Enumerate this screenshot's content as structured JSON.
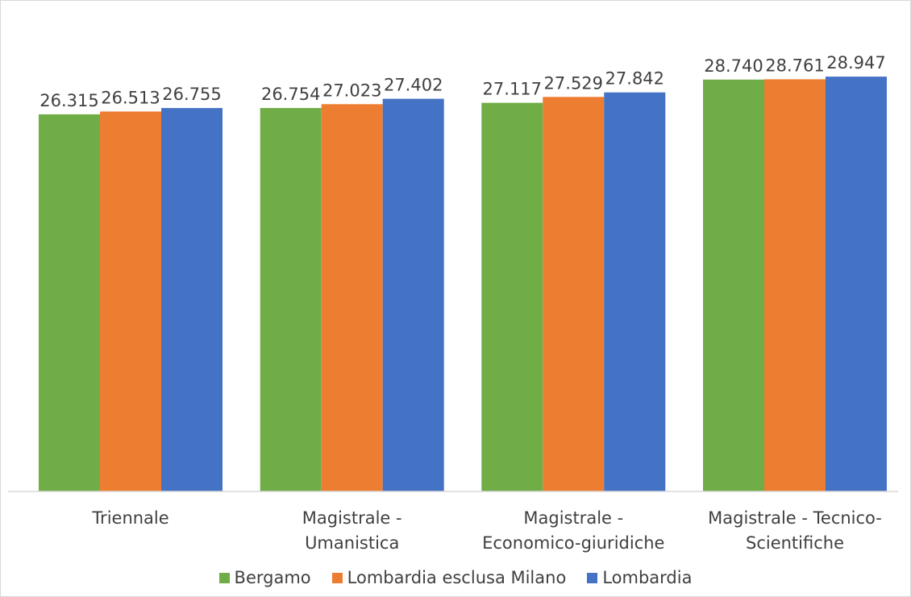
{
  "chart_data": {
    "type": "bar",
    "categories": [
      [
        "Triennale"
      ],
      [
        "Magistrale -",
        "Umanistica"
      ],
      [
        "Magistrale -",
        "Economico-giuridiche"
      ],
      [
        "Magistrale - Tecnico-",
        "Scientifiche"
      ]
    ],
    "series": [
      {
        "name": "Bergamo",
        "color": "#70ad47",
        "values": [
          26315,
          26754,
          27117,
          28740
        ],
        "labels": [
          "26.315",
          "26.754",
          "27.117",
          "28.740"
        ]
      },
      {
        "name": "Lombardia esclusa Milano",
        "color": "#ed7d31",
        "values": [
          26513,
          27023,
          27529,
          28761
        ],
        "labels": [
          "26.513",
          "27.023",
          "27.529",
          "28.761"
        ]
      },
      {
        "name": "Lombardia",
        "color": "#4472c4",
        "values": [
          26755,
          27402,
          27842,
          28947
        ],
        "labels": [
          "26.755",
          "27.402",
          "27.842",
          "28.947"
        ]
      }
    ],
    "ylim": [
      0,
      33000
    ],
    "grid": false,
    "legend_position": "bottom"
  },
  "legend": {
    "items": [
      {
        "label": "Bergamo",
        "color": "#70ad47"
      },
      {
        "label": "Lombardia esclusa Milano",
        "color": "#ed7d31"
      },
      {
        "label": "Lombardia",
        "color": "#4472c4"
      }
    ]
  }
}
